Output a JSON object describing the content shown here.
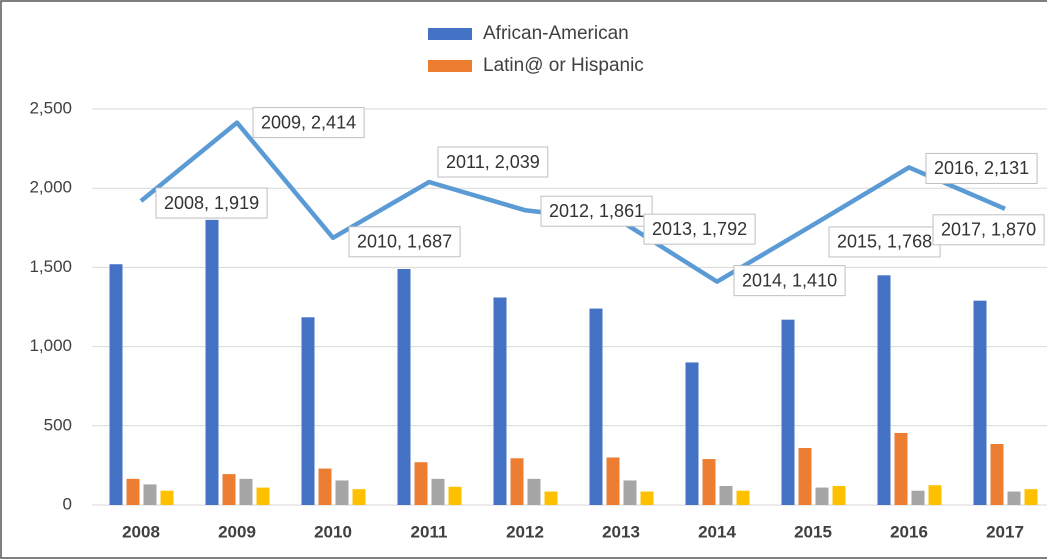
{
  "chart_data": {
    "type": "bar",
    "categories": [
      "2008",
      "2009",
      "2010",
      "2011",
      "2012",
      "2013",
      "2014",
      "2015",
      "2016",
      "2017"
    ],
    "series": [
      {
        "name": "African-American",
        "color": "#4472c4",
        "values": [
          1520,
          1800,
          1185,
          1490,
          1310,
          1240,
          900,
          1170,
          1450,
          1290
        ]
      },
      {
        "name": "Latin@ or Hispanic",
        "color": "#ed7d31",
        "values": [
          165,
          195,
          230,
          270,
          295,
          300,
          290,
          360,
          455,
          385
        ]
      },
      {
        "color": "#a5a5a5",
        "values": [
          130,
          165,
          155,
          165,
          165,
          155,
          120,
          110,
          90,
          85
        ]
      },
      {
        "color": "#ffc000",
        "values": [
          90,
          110,
          100,
          115,
          85,
          85,
          90,
          120,
          125,
          100
        ]
      },
      {
        "type": "line",
        "color": "#5b9bd5",
        "values": [
          1919,
          2414,
          1687,
          2039,
          1861,
          1792,
          1410,
          1768,
          2131,
          1870
        ],
        "value_labels": [
          "2008, 1,919",
          "2009, 2,414",
          "2010, 1,687",
          "2011, 2,039",
          "2012, 1,861",
          "2013, 1,792",
          "2014, 1,410",
          "2015, 1,768",
          "2016, 2,131",
          "2017, 1,870"
        ]
      }
    ],
    "ylim": [
      0,
      2500
    ],
    "yticks": [
      0,
      {
        "value": 500,
        "label": "500"
      },
      {
        "value": 1000,
        "label": "1,000"
      },
      {
        "value": 1500,
        "label": "1,500"
      },
      {
        "value": 2000,
        "label": "2,000"
      },
      {
        "value": 2500,
        "label": "2,500"
      }
    ],
    "grid": true
  }
}
